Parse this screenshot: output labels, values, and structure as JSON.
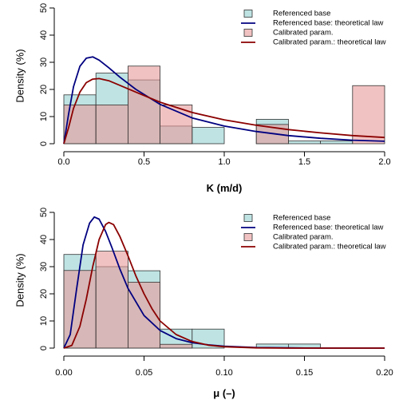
{
  "chart_data": [
    {
      "type": "bar",
      "xlabel": "K (m/d)",
      "ylabel": "Density (%)",
      "xlim": [
        0,
        2
      ],
      "ylim": [
        0,
        50
      ],
      "x_ticks": [
        "0.0",
        "0.5",
        "1.0",
        "1.5",
        "2.0"
      ],
      "y_ticks": [
        "0",
        "10",
        "20",
        "30",
        "40",
        "50"
      ],
      "bin_edges": [
        0.0,
        0.2,
        0.4,
        0.6,
        0.8,
        1.0,
        1.2,
        1.4,
        1.6,
        1.8,
        2.0
      ],
      "series": [
        {
          "name": "Referenced base",
          "kind": "histogram",
          "fill": "#bfe3e3",
          "values": [
            18,
            26,
            23.5,
            6.5,
            6,
            0,
            9,
            1,
            1,
            0
          ]
        },
        {
          "name": "Referenced base: theoretical law",
          "kind": "line",
          "color": "#000080",
          "x": [
            0.0,
            0.03,
            0.06,
            0.1,
            0.14,
            0.18,
            0.22,
            0.28,
            0.35,
            0.45,
            0.6,
            0.8,
            1.0,
            1.2,
            1.4,
            1.6,
            1.8,
            2.0
          ],
          "values": [
            0,
            11,
            21,
            28.5,
            31.5,
            32,
            30.8,
            28,
            24.5,
            20,
            14.5,
            9.5,
            6.5,
            4.5,
            3,
            2,
            1.3,
            0.9
          ]
        },
        {
          "name": "Calibrated param.",
          "kind": "histogram",
          "fill": "#e89999",
          "values": [
            14.3,
            14.3,
            28.6,
            14.3,
            0,
            0,
            7.1,
            0,
            0,
            21.4
          ]
        },
        {
          "name": "Calibrated param.: theoretical law",
          "kind": "line",
          "color": "#8b0000",
          "x": [
            0.0,
            0.03,
            0.06,
            0.1,
            0.14,
            0.18,
            0.22,
            0.28,
            0.35,
            0.45,
            0.6,
            0.8,
            1.0,
            1.2,
            1.4,
            1.6,
            1.8,
            2.0
          ],
          "values": [
            0,
            6,
            13,
            19,
            22.5,
            23.8,
            24,
            23.2,
            21.5,
            19,
            15.3,
            11.5,
            8.8,
            6.8,
            5.2,
            4,
            3,
            2.3
          ]
        }
      ],
      "legend_position": "top-right"
    },
    {
      "type": "bar",
      "xlabel": "μ (–)",
      "ylabel": "Density (%)",
      "xlim": [
        0,
        0.2
      ],
      "ylim": [
        0,
        50
      ],
      "x_ticks": [
        "0.00",
        "0.05",
        "0.10",
        "0.15",
        "0.20"
      ],
      "y_ticks": [
        "0",
        "10",
        "20",
        "30",
        "40",
        "50"
      ],
      "bin_edges": [
        0.0,
        0.02,
        0.04,
        0.06,
        0.08,
        0.1,
        0.12,
        0.14,
        0.16,
        0.18,
        0.2
      ],
      "series": [
        {
          "name": "Referenced base",
          "kind": "histogram",
          "fill": "#bfe3e3",
          "values": [
            34.5,
            30,
            28.5,
            7,
            7,
            0,
            1.5,
            1.5,
            0,
            0
          ]
        },
        {
          "name": "Referenced base: theoretical law",
          "kind": "line",
          "color": "#000080",
          "x": [
            0.0,
            0.004,
            0.008,
            0.012,
            0.016,
            0.019,
            0.022,
            0.026,
            0.03,
            0.035,
            0.04,
            0.05,
            0.06,
            0.07,
            0.08,
            0.09,
            0.1,
            0.12,
            0.14,
            0.16,
            0.2
          ],
          "values": [
            0,
            5,
            22,
            38,
            46,
            48.3,
            47.5,
            43,
            37,
            29,
            22,
            12,
            6.5,
            3.5,
            2,
            1.2,
            0.7,
            0.2,
            0.1,
            0,
            0
          ]
        },
        {
          "name": "Calibrated param.",
          "kind": "histogram",
          "fill": "#e89999",
          "values": [
            28.6,
            35.7,
            24.3,
            1.4,
            0,
            0,
            0,
            0,
            0,
            0
          ]
        },
        {
          "name": "Calibrated param.: theoretical law",
          "kind": "line",
          "color": "#8b0000",
          "x": [
            0.0,
            0.005,
            0.01,
            0.014,
            0.018,
            0.022,
            0.026,
            0.028,
            0.031,
            0.035,
            0.04,
            0.045,
            0.05,
            0.055,
            0.06,
            0.07,
            0.08,
            0.09,
            0.1,
            0.12,
            0.14,
            0.2
          ],
          "values": [
            0,
            1,
            8,
            18,
            30,
            40,
            45.5,
            46.3,
            45.5,
            41,
            34,
            26.5,
            20,
            14.5,
            10,
            5,
            2.4,
            1.1,
            0.5,
            0.1,
            0,
            0
          ]
        }
      ],
      "legend_position": "top-right"
    }
  ]
}
